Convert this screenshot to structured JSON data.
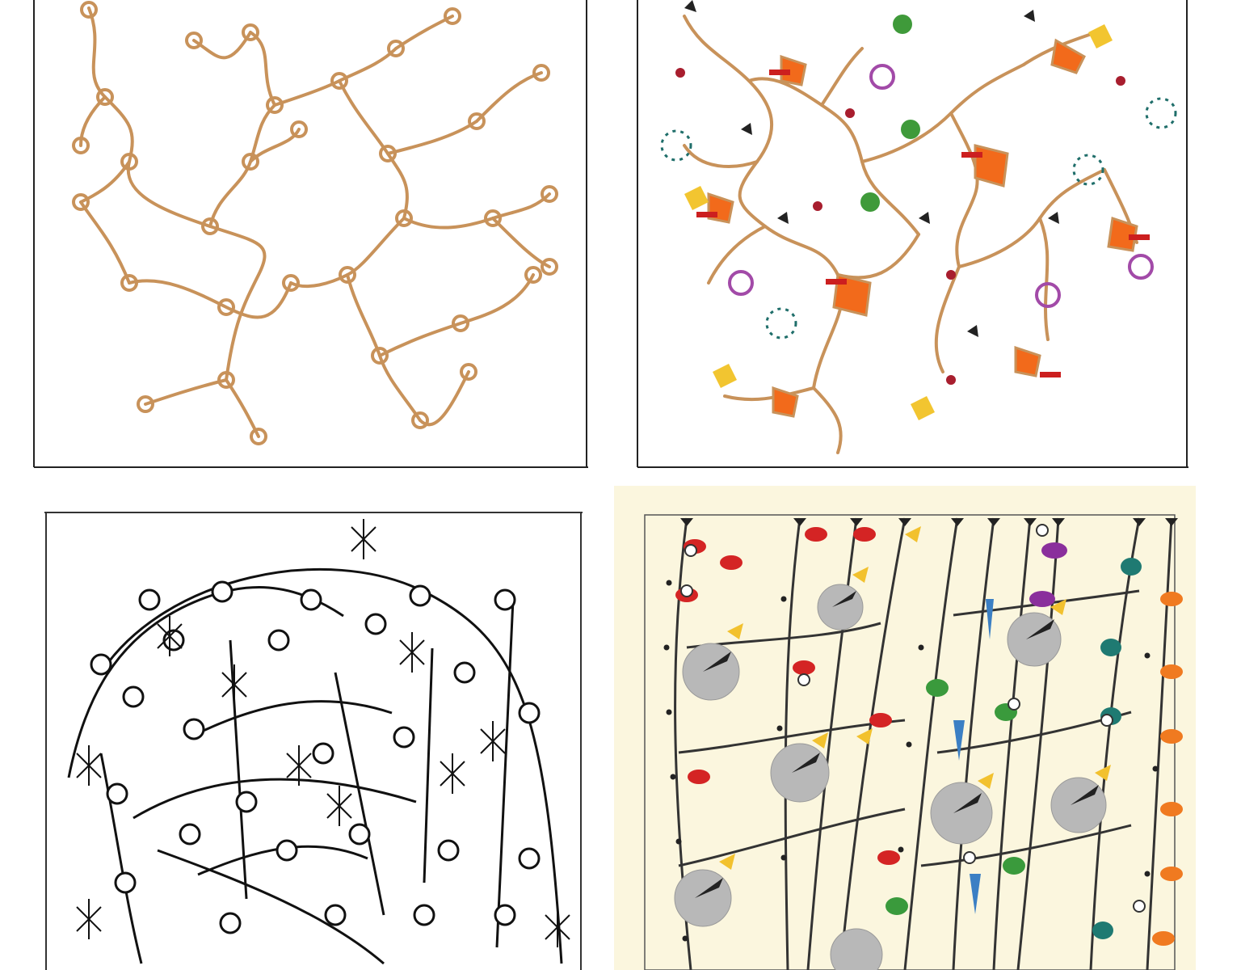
{
  "panels": [
    {
      "id": "branching-loops-plain",
      "stroke_color": "#c8925a"
    },
    {
      "id": "branching-loops-decorated",
      "stroke_color": "#c8925a",
      "decoration_colors": {
        "orange": "#f26a1b",
        "red": "#cc1f1f",
        "yellow": "#f2c530",
        "green": "#3f9a3a",
        "teal": "#1f6e6a",
        "purple": "#a24aa8",
        "black": "#222222",
        "maroon": "#a81e2e"
      }
    },
    {
      "id": "black-line-network",
      "stroke_color": "#111111"
    },
    {
      "id": "colored-bird-strands",
      "stroke_color": "#333333",
      "background": "#fbf6de",
      "colors": {
        "silver": "#b8b8b8",
        "red": "#d42424",
        "orange": "#f07a20",
        "yellow": "#f2c12e",
        "green": "#3a9a3c",
        "teal": "#1f7a72",
        "blue": "#3b7fc4",
        "purple": "#8a2f9c",
        "pink": "#f06a9a"
      }
    }
  ]
}
